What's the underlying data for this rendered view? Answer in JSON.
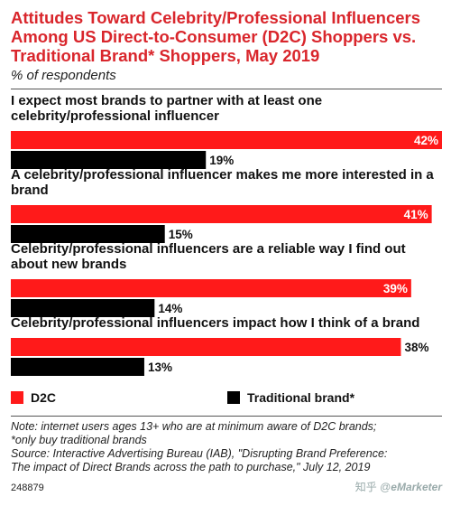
{
  "title": "Attitudes Toward Celebrity/Professional Influencers Among US Direct-to-Consumer (D2C) Shoppers vs. Traditional Brand* Shoppers, May 2019",
  "subtitle": "% of respondents",
  "chart_data": {
    "type": "bar",
    "orientation": "horizontal",
    "categories": [
      "I expect most brands to partner with at least one celebrity/professional influencer",
      "A celebrity/professional influencer makes me more interested in a brand",
      "Celebrity/professional influencers are a reliable way I find out about new brands",
      "Celebrity/professional influencers impact how I think of a brand"
    ],
    "series": [
      {
        "name": "D2C",
        "values": [
          42,
          41,
          39,
          38
        ],
        "color": "#ff1a1a"
      },
      {
        "name": "Traditional brand*",
        "values": [
          19,
          15,
          14,
          13
        ],
        "color": "#000000"
      }
    ],
    "value_suffix": "%",
    "xlim": [
      0,
      42
    ],
    "legend_position": "bottom",
    "grid": false
  },
  "notes": [
    "Note: internet users ages 13+ who are at minimum aware of D2C brands;",
    "*only buy traditional brands",
    "Source: Interactive Advertising Bureau (IAB), \"Disrupting Brand Preference:",
    "The impact of Direct Brands across the path to purchase,\" July 12, 2019"
  ],
  "chart_id": "248879",
  "brand": "eMarketer",
  "brand_prefix": "知乎 @"
}
